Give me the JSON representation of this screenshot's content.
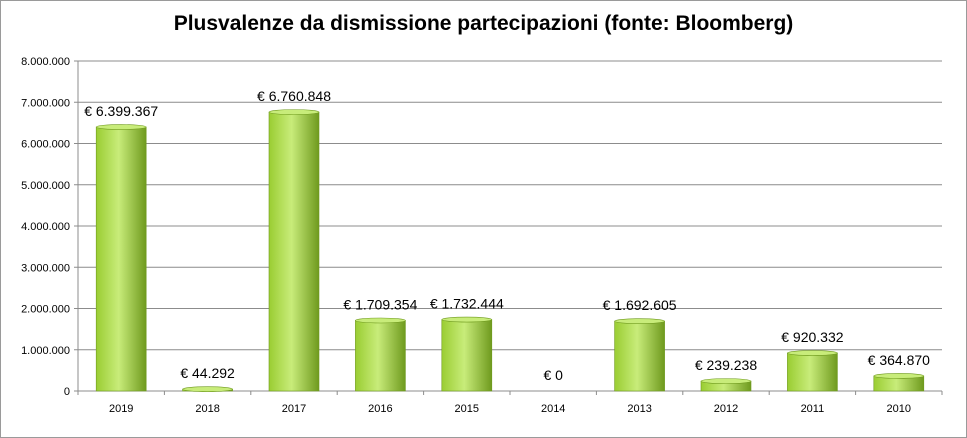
{
  "chart_data": {
    "type": "bar",
    "title": "Plusvalenze da dismissione partecipazioni (fonte: Bloomberg)",
    "categories": [
      "2019",
      "2018",
      "2017",
      "2016",
      "2015",
      "2014",
      "2013",
      "2012",
      "2011",
      "2010"
    ],
    "values": [
      6399367,
      44292,
      6760848,
      1709354,
      1732444,
      0,
      1692605,
      239238,
      920332,
      364870
    ],
    "data_labels": [
      "€ 6.399.367",
      "€ 44.292",
      "€ 6.760.848",
      "€ 1.709.354",
      "€ 1.732.444",
      "€ 0",
      "€ 1.692.605",
      "€ 239.238",
      "€ 920.332",
      "€ 364.870"
    ],
    "yticks": [
      0,
      1000000,
      2000000,
      3000000,
      4000000,
      5000000,
      6000000,
      7000000,
      8000000
    ],
    "ytick_labels": [
      "0",
      "1.000.000",
      "2.000.000",
      "3.000.000",
      "4.000.000",
      "5.000.000",
      "6.000.000",
      "7.000.000",
      "8.000.000"
    ],
    "ylim": [
      0,
      8000000
    ],
    "grid": true,
    "legend": "none",
    "bar_color": "#9acd32",
    "bar_color_light": "#c8ec7a",
    "bar_color_dark": "#6f9a1e"
  }
}
